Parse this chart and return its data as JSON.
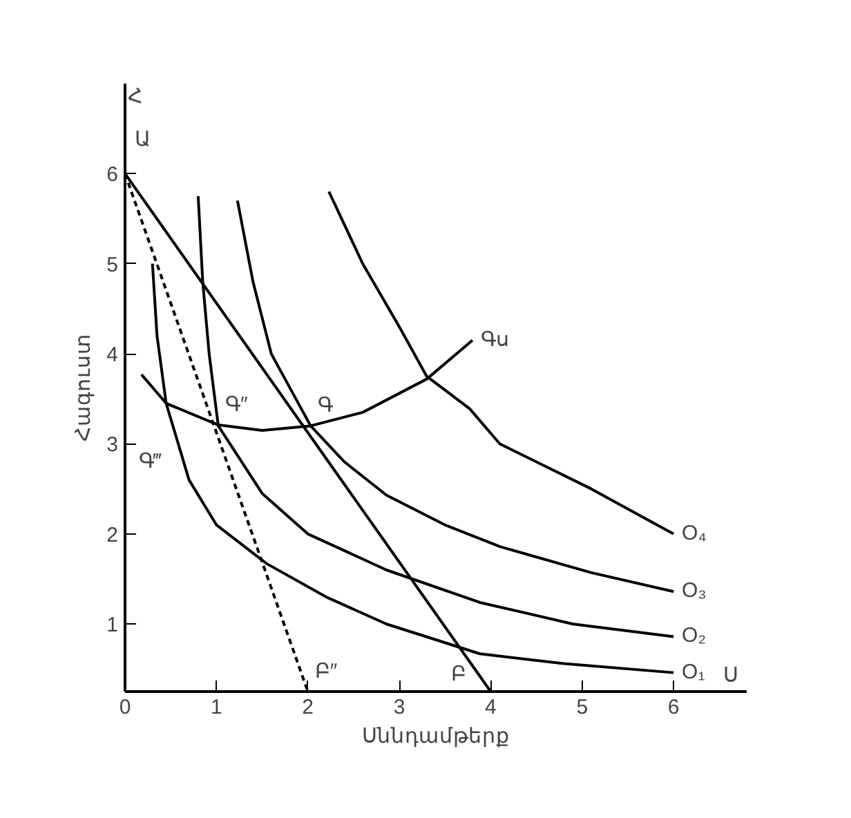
{
  "chart_data": {
    "type": "line",
    "xlabel": "Սննդամթերք",
    "ylabel": "Հագուստ",
    "xlim": [
      0,
      6.8
    ],
    "ylim": [
      0.25,
      7.0
    ],
    "xticks": [
      0,
      1,
      2,
      3,
      4,
      5,
      6
    ],
    "yticks": [
      1,
      2,
      3,
      4,
      5,
      6
    ],
    "grid": false,
    "legend": false,
    "series": [
      {
        "name": "O₁",
        "color": "#000000",
        "x": [
          0.3,
          0.35,
          0.45,
          0.7,
          1.0,
          1.55,
          2.2,
          2.86,
          3.88,
          4.8,
          6
        ],
        "values": [
          5.0,
          4.2,
          3.45,
          2.6,
          2.1,
          1.67,
          1.3,
          1.0,
          0.67,
          0.56,
          0.46
        ]
      },
      {
        "name": "O₂",
        "color": "#000000",
        "x": [
          0.8,
          0.85,
          0.92,
          1.02,
          1.5,
          2.0,
          2.86,
          3.88,
          4.9,
          6
        ],
        "values": [
          5.75,
          4.8,
          4.0,
          3.2,
          2.45,
          2.0,
          1.6,
          1.24,
          1.0,
          0.86
        ]
      },
      {
        "name": "O₃",
        "color": "#000000",
        "x": [
          1.23,
          1.4,
          1.6,
          2.03,
          2.4,
          2.86,
          3.5,
          4.1,
          5.1,
          6
        ],
        "values": [
          5.7,
          4.8,
          4.0,
          3.2,
          2.8,
          2.43,
          2.1,
          1.86,
          1.57,
          1.36
        ]
      },
      {
        "name": "O₄",
        "color": "#000000",
        "x": [
          2.23,
          2.6,
          3.0,
          3.3,
          3.77,
          4.1,
          5.1,
          6
        ],
        "values": [
          5.8,
          5.0,
          4.3,
          3.75,
          3.39,
          3.0,
          2.5,
          2.0
        ]
      },
      {
        "color": "#000000",
        "x": [
          0,
          4
        ],
        "values": [
          6,
          0.25
        ]
      },
      {
        "color": "#000000",
        "line_style": "dashed",
        "x": [
          0,
          2
        ],
        "values": [
          6,
          0.25
        ]
      },
      {
        "name": "Գս",
        "color": "#000000",
        "x": [
          0.18,
          0.45,
          1.02,
          1.5,
          2.03,
          2.6,
          3.3,
          3.8
        ],
        "values": [
          3.77,
          3.45,
          3.21,
          3.15,
          3.2,
          3.35,
          3.72,
          4.15
        ]
      }
    ],
    "annotations": [
      "Ա",
      "Բ",
      {
        "text": "Բ″",
        "x": 2,
        "y": 0.25
      },
      {
        "text": "Գ",
        "x": 2.03,
        "y": 3.2
      },
      {
        "text": "Գ″",
        "x": 1.02,
        "y": 3.21
      },
      "Գ‴",
      "Ս",
      "Հ"
    ]
  }
}
